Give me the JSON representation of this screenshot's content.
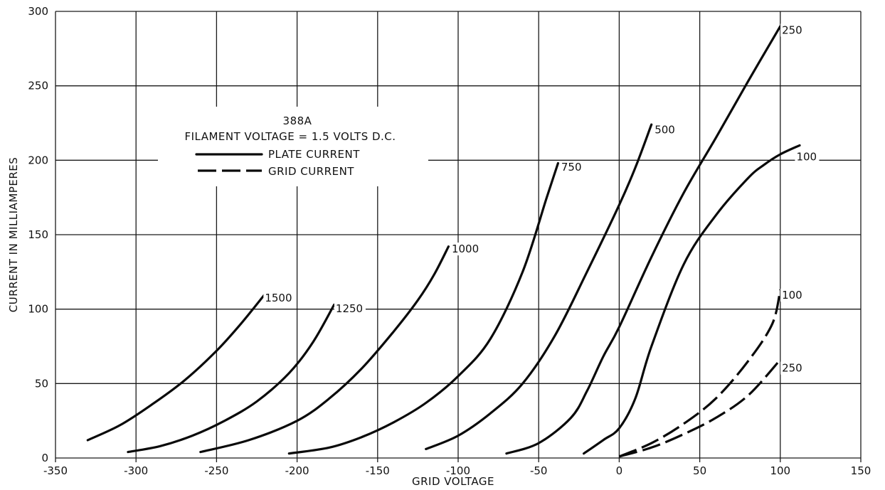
{
  "chart_data": {
    "type": "line",
    "title": "388A",
    "subtitle": "FILAMENT VOLTAGE = 1.5 VOLTS D.C.",
    "xlabel": "GRID VOLTAGE",
    "ylabel": "CURRENT IN MILLIAMPERES",
    "xlim": [
      -350,
      150
    ],
    "ylim": [
      0,
      300
    ],
    "xticks": [
      -350,
      -300,
      -250,
      -200,
      -150,
      -100,
      -50,
      0,
      50,
      100,
      150
    ],
    "xtick_labels": [
      "-350",
      "-300",
      "-250",
      "-200",
      "-150",
      "-100",
      "-50",
      "0",
      "50",
      "100",
      "150"
    ],
    "yticks": [
      0,
      50,
      100,
      150,
      200,
      250,
      300
    ],
    "ytick_labels": [
      "0",
      "50",
      "100",
      "150",
      "200",
      "250",
      "300"
    ],
    "grid": true,
    "legend": {
      "placement": "upper-left",
      "entries": [
        {
          "label": "PLATE CURRENT",
          "style": "solid"
        },
        {
          "label": "GRID CURRENT",
          "style": "dashed"
        }
      ]
    },
    "series": [
      {
        "name": "1500",
        "kind": "plate",
        "label_at": [
          -220,
          105
        ],
        "x": [
          -330,
          -310,
          -290,
          -270,
          -250,
          -235,
          -220
        ],
        "y": [
          12,
          22,
          36,
          52,
          72,
          90,
          110
        ]
      },
      {
        "name": "1250",
        "kind": "plate",
        "label_at": [
          -176,
          98
        ],
        "x": [
          -305,
          -285,
          -265,
          -245,
          -225,
          -205,
          -190,
          -177
        ],
        "y": [
          4,
          8,
          15,
          25,
          38,
          57,
          78,
          103
        ]
      },
      {
        "name": "1000",
        "kind": "plate",
        "label_at": [
          -104,
          138
        ],
        "x": [
          -260,
          -230,
          -200,
          -180,
          -160,
          -140,
          -125,
          -115,
          -106
        ],
        "y": [
          4,
          12,
          25,
          40,
          60,
          85,
          106,
          123,
          142
        ]
      },
      {
        "name": "750",
        "kind": "plate",
        "label_at": [
          -36,
          193
        ],
        "x": [
          -205,
          -180,
          -160,
          -140,
          -120,
          -100,
          -80,
          -60,
          -45,
          -38
        ],
        "y": [
          3,
          7,
          14,
          24,
          37,
          55,
          80,
          125,
          175,
          198
        ]
      },
      {
        "name": "500",
        "kind": "plate",
        "label_at": [
          22,
          218
        ],
        "x": [
          -120,
          -100,
          -80,
          -60,
          -40,
          -20,
          0,
          10,
          20
        ],
        "y": [
          6,
          15,
          30,
          50,
          82,
          125,
          170,
          195,
          224
        ]
      },
      {
        "name": "250",
        "kind": "plate",
        "label_at": [
          101,
          285
        ],
        "x": [
          -70,
          -50,
          -30,
          -20,
          -10,
          0,
          20,
          40,
          60,
          80,
          100
        ],
        "y": [
          3,
          10,
          27,
          45,
          68,
          88,
          135,
          178,
          215,
          253,
          290
        ]
      },
      {
        "name": "100",
        "kind": "plate",
        "label_at": [
          110,
          200
        ],
        "x": [
          -22,
          -10,
          0,
          10,
          20,
          40,
          60,
          80,
          90,
          100,
          112
        ],
        "y": [
          3,
          12,
          20,
          40,
          75,
          130,
          163,
          188,
          197,
          204,
          210
        ]
      },
      {
        "name": "100",
        "kind": "grid",
        "label_at": [
          101,
          107
        ],
        "x": [
          0,
          20,
          40,
          60,
          80,
          95,
          100
        ],
        "y": [
          1,
          10,
          23,
          40,
          65,
          90,
          113
        ]
      },
      {
        "name": "250",
        "kind": "grid",
        "label_at": [
          101,
          58
        ],
        "x": [
          0,
          20,
          40,
          60,
          80,
          100
        ],
        "y": [
          1,
          7,
          16,
          27,
          42,
          66
        ]
      }
    ]
  }
}
